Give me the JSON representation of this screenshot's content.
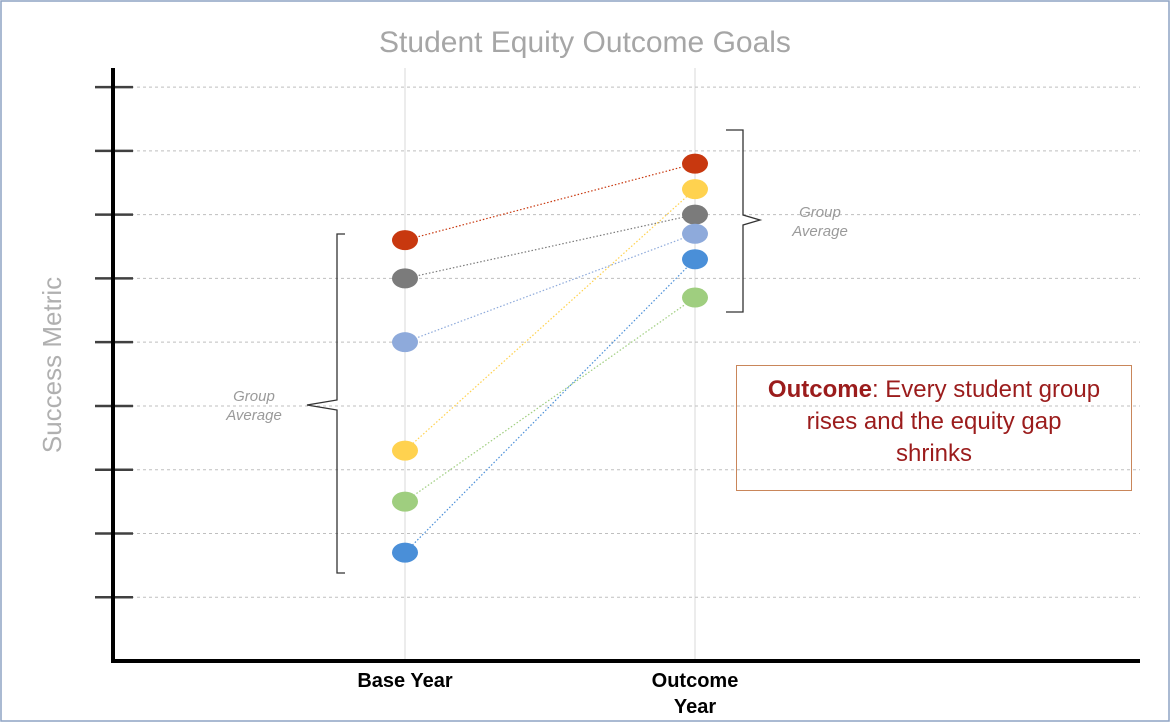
{
  "chart_data": {
    "type": "slope",
    "title": "Student Equity Outcome Goals",
    "y_label": "Success Metric",
    "categories": [
      "Base Year",
      "Outcome Year"
    ],
    "ylim": [
      0,
      9.3
    ],
    "yticks": [
      1,
      2,
      3,
      4,
      5,
      6,
      7,
      8,
      9
    ],
    "grid": true,
    "series": [
      {
        "color": "#c8380f",
        "values": [
          6.6,
          7.8
        ]
      },
      {
        "color": "#7b7b7b",
        "values": [
          6.0,
          7.0
        ]
      },
      {
        "color": "#8eaadb",
        "values": [
          5.0,
          6.7
        ]
      },
      {
        "color": "#ffd24f",
        "values": [
          3.3,
          7.4
        ]
      },
      {
        "color": "#9fce7f",
        "values": [
          2.5,
          5.7
        ]
      },
      {
        "color": "#4a8fd8",
        "values": [
          1.7,
          6.3
        ]
      }
    ],
    "annotations": {
      "base_group": "Group Average",
      "outcome_group": "Group Average",
      "outcome_box": {
        "bold": "Outcome",
        "text": ": Every student group rises and the equity gap shrinks"
      }
    }
  }
}
